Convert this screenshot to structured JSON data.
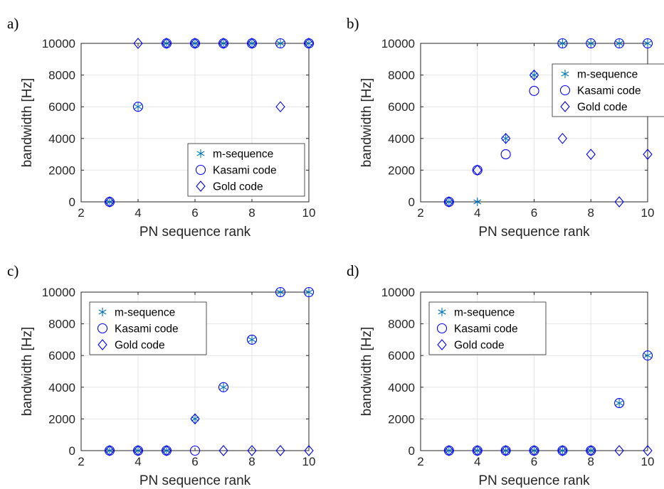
{
  "colors": {
    "m_sequence": "#0072BD",
    "kasami": "#0000FF",
    "gold": "#0000FF",
    "grid": "#e6e6e6",
    "axis": "#262626"
  },
  "chart_data": [
    {
      "panel": "a)",
      "type": "scatter",
      "xlabel": "PN sequence rank",
      "ylabel": "bandwidth [Hz]",
      "xlim": [
        2,
        10
      ],
      "ylim": [
        0,
        10000
      ],
      "xticks": [
        2,
        4,
        6,
        8,
        10
      ],
      "yticks": [
        0,
        2000,
        4000,
        6000,
        8000,
        10000
      ],
      "grid": true,
      "legend_position": "bottom-right",
      "series": [
        {
          "name": "m-sequence",
          "marker": "asterisk",
          "x": [
            3,
            4,
            5,
            6,
            7,
            8,
            9,
            10
          ],
          "values": [
            0,
            6000,
            10000,
            10000,
            10000,
            10000,
            10000,
            10000
          ]
        },
        {
          "name": "Kasami code",
          "marker": "circle",
          "x": [
            3,
            4,
            5,
            6,
            7,
            8,
            9,
            10
          ],
          "values": [
            0,
            6000,
            10000,
            10000,
            10000,
            10000,
            10000,
            10000
          ]
        },
        {
          "name": "Gold code",
          "marker": "diamond",
          "x": [
            3,
            4,
            5,
            6,
            7,
            8,
            9,
            10
          ],
          "values": [
            0,
            10000,
            10000,
            10000,
            10000,
            10000,
            6000,
            10000
          ]
        }
      ]
    },
    {
      "panel": "b)",
      "type": "scatter",
      "xlabel": "PN sequence rank",
      "ylabel": "bandwidth [Hz]",
      "xlim": [
        2,
        10
      ],
      "ylim": [
        0,
        10000
      ],
      "xticks": [
        2,
        4,
        6,
        8,
        10
      ],
      "yticks": [
        0,
        2000,
        4000,
        6000,
        8000,
        10000
      ],
      "grid": true,
      "legend_position": "top-right",
      "series": [
        {
          "name": "m-sequence",
          "marker": "asterisk",
          "x": [
            3,
            4,
            5,
            6,
            7,
            8,
            9,
            10
          ],
          "values": [
            0,
            0,
            4000,
            8000,
            10000,
            10000,
            10000,
            10000
          ]
        },
        {
          "name": "Kasami code",
          "marker": "circle",
          "x": [
            3,
            4,
            5,
            6,
            7,
            8,
            9,
            10
          ],
          "values": [
            0,
            2000,
            3000,
            7000,
            10000,
            10000,
            10000,
            10000
          ]
        },
        {
          "name": "Gold code",
          "marker": "diamond",
          "x": [
            3,
            4,
            5,
            6,
            7,
            8,
            9,
            10
          ],
          "values": [
            0,
            2000,
            4000,
            8000,
            4000,
            3000,
            0,
            3000
          ]
        }
      ]
    },
    {
      "panel": "c)",
      "type": "scatter",
      "xlabel": "PN sequence rank",
      "ylabel": "bandwidth [Hz]",
      "xlim": [
        2,
        10
      ],
      "ylim": [
        0,
        10000
      ],
      "xticks": [
        2,
        4,
        6,
        8,
        10
      ],
      "yticks": [
        0,
        2000,
        4000,
        6000,
        8000,
        10000
      ],
      "grid": true,
      "legend_position": "top-left",
      "series": [
        {
          "name": "m-sequence",
          "marker": "asterisk",
          "x": [
            3,
            4,
            5,
            6,
            7,
            8,
            9,
            10
          ],
          "values": [
            0,
            0,
            0,
            2000,
            4000,
            7000,
            10000,
            10000
          ]
        },
        {
          "name": "Kasami code",
          "marker": "circle",
          "x": [
            3,
            4,
            5,
            6,
            7,
            8,
            9,
            10
          ],
          "values": [
            0,
            0,
            0,
            0,
            4000,
            7000,
            10000,
            10000
          ]
        },
        {
          "name": "Gold code",
          "marker": "diamond",
          "x": [
            3,
            4,
            5,
            6,
            7,
            8,
            9,
            10
          ],
          "values": [
            0,
            0,
            0,
            2000,
            0,
            0,
            0,
            0
          ]
        }
      ]
    },
    {
      "panel": "d)",
      "type": "scatter",
      "xlabel": "PN sequence rank",
      "ylabel": "bandwidth [Hz]",
      "xlim": [
        2,
        10
      ],
      "ylim": [
        0,
        10000
      ],
      "xticks": [
        2,
        4,
        6,
        8,
        10
      ],
      "yticks": [
        0,
        2000,
        4000,
        6000,
        8000,
        10000
      ],
      "grid": true,
      "legend_position": "top-left",
      "series": [
        {
          "name": "m-sequence",
          "marker": "asterisk",
          "x": [
            3,
            4,
            5,
            6,
            7,
            8,
            9,
            10
          ],
          "values": [
            0,
            0,
            0,
            0,
            0,
            0,
            3000,
            6000
          ]
        },
        {
          "name": "Kasami code",
          "marker": "circle",
          "x": [
            3,
            4,
            5,
            6,
            7,
            8,
            9,
            10
          ],
          "values": [
            0,
            0,
            0,
            0,
            0,
            0,
            3000,
            6000
          ]
        },
        {
          "name": "Gold code",
          "marker": "diamond",
          "x": [
            3,
            4,
            5,
            6,
            7,
            8,
            9,
            10
          ],
          "values": [
            0,
            0,
            0,
            0,
            0,
            0,
            0,
            0
          ]
        }
      ]
    }
  ]
}
